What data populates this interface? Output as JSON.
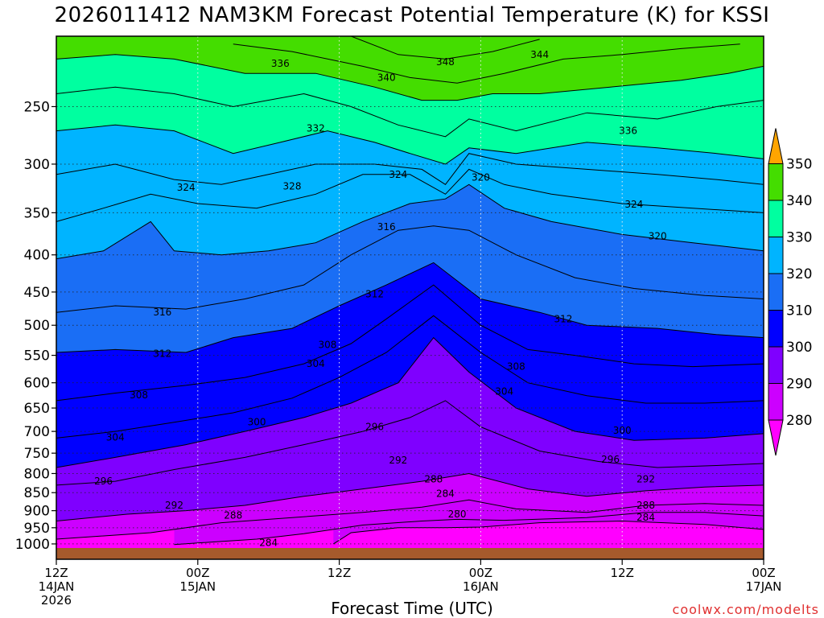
{
  "title": "2026011412 NAM3KM Forecast Potential Temperature (K) for KSSI",
  "xlabel": "Forecast Time (UTC)",
  "credit": "coolwx.com/modelts",
  "chart_data": {
    "type": "heatmap",
    "title": "2026011412 NAM3KM Forecast Potential Temperature (K) for KSSI",
    "xlabel": "Forecast Time (UTC)",
    "ylabel": "",
    "x_ticks": [
      {
        "hour": 0,
        "label": [
          "12Z",
          "14JAN",
          "2026"
        ]
      },
      {
        "hour": 12,
        "label": [
          "00Z",
          "15JAN"
        ]
      },
      {
        "hour": 24,
        "label": [
          "12Z"
        ]
      },
      {
        "hour": 36,
        "label": [
          "00Z",
          "16JAN"
        ]
      },
      {
        "hour": 48,
        "label": [
          "12Z"
        ]
      },
      {
        "hour": 60,
        "label": [
          "00Z",
          "17JAN"
        ]
      }
    ],
    "xlim": [
      0,
      60
    ],
    "y_ticks": [
      250,
      300,
      350,
      400,
      450,
      500,
      550,
      600,
      650,
      700,
      750,
      800,
      850,
      900,
      950,
      1000
    ],
    "ylim": [
      1013,
      200
    ],
    "y_scale": "log-pressure (hPa)",
    "colorbar": {
      "levels": [
        280,
        290,
        300,
        310,
        320,
        330,
        340,
        350
      ],
      "colors": [
        "#ff00ff",
        "#cc00ff",
        "#7f00ff",
        "#0000ff",
        "#1a6ef5",
        "#00b4ff",
        "#00ffa0",
        "#44dd00",
        "#ffff00",
        "#ffa500"
      ]
    },
    "contour_interval": 4,
    "isentropes": [
      {
        "value": 280,
        "points": [
          [
            23.5,
            1000
          ],
          [
            25,
            965
          ],
          [
            29,
            950
          ],
          [
            33,
            950
          ],
          [
            36,
            948
          ],
          [
            41,
            935
          ],
          [
            48,
            930
          ],
          [
            55,
            940
          ],
          [
            60,
            955
          ]
        ]
      },
      {
        "value": 284,
        "points": [
          [
            10,
            1002
          ],
          [
            17,
            985
          ],
          [
            21,
            968
          ],
          [
            26,
            942
          ],
          [
            31,
            930
          ],
          [
            34,
            925
          ],
          [
            38,
            928
          ],
          [
            45,
            920
          ],
          [
            50,
            905
          ],
          [
            55,
            905
          ],
          [
            60,
            915
          ]
        ]
      },
      {
        "value": 288,
        "points": [
          [
            0,
            985
          ],
          [
            8,
            965
          ],
          [
            14,
            935
          ],
          [
            20,
            920
          ],
          [
            26,
            905
          ],
          [
            31,
            890
          ],
          [
            35,
            870
          ],
          [
            39,
            895
          ],
          [
            45,
            905
          ],
          [
            50,
            885
          ],
          [
            55,
            880
          ],
          [
            60,
            885
          ]
        ]
      },
      {
        "value": 292,
        "points": [
          [
            0,
            930
          ],
          [
            6,
            910
          ],
          [
            11,
            900
          ],
          [
            16,
            885
          ],
          [
            21,
            860
          ],
          [
            26,
            840
          ],
          [
            31,
            820
          ],
          [
            35,
            800
          ],
          [
            40,
            840
          ],
          [
            45,
            860
          ],
          [
            50,
            845
          ],
          [
            55,
            835
          ],
          [
            60,
            830
          ]
        ]
      },
      {
        "value": 296,
        "points": [
          [
            0,
            830
          ],
          [
            5,
            820
          ],
          [
            10,
            790
          ],
          [
            16,
            760
          ],
          [
            21,
            730
          ],
          [
            26,
            700
          ],
          [
            30,
            670
          ],
          [
            33,
            635
          ],
          [
            36,
            690
          ],
          [
            41,
            745
          ],
          [
            46,
            770
          ],
          [
            51,
            785
          ],
          [
            56,
            780
          ],
          [
            60,
            775
          ]
        ]
      },
      {
        "value": 300,
        "points": [
          [
            0,
            785
          ],
          [
            5,
            760
          ],
          [
            11,
            730
          ],
          [
            16,
            700
          ],
          [
            21,
            670
          ],
          [
            25,
            640
          ],
          [
            29,
            600
          ],
          [
            32,
            520
          ],
          [
            35,
            580
          ],
          [
            39,
            650
          ],
          [
            44,
            700
          ],
          [
            49,
            720
          ],
          [
            55,
            715
          ],
          [
            60,
            705
          ]
        ]
      },
      {
        "value": 304,
        "points": [
          [
            0,
            715
          ],
          [
            5,
            700
          ],
          [
            10,
            680
          ],
          [
            15,
            660
          ],
          [
            20,
            630
          ],
          [
            24,
            590
          ],
          [
            28,
            545
          ],
          [
            32,
            485
          ],
          [
            36,
            545
          ],
          [
            40,
            600
          ],
          [
            45,
            625
          ],
          [
            50,
            640
          ],
          [
            55,
            640
          ],
          [
            60,
            635
          ]
        ]
      },
      {
        "value": 308,
        "points": [
          [
            0,
            635
          ],
          [
            5,
            620
          ],
          [
            11,
            605
          ],
          [
            16,
            590
          ],
          [
            21,
            565
          ],
          [
            25,
            530
          ],
          [
            28,
            490
          ],
          [
            32,
            440
          ],
          [
            36,
            500
          ],
          [
            40,
            540
          ],
          [
            44,
            550
          ],
          [
            49,
            565
          ],
          [
            54,
            570
          ],
          [
            60,
            565
          ]
        ]
      },
      {
        "value": 312,
        "points": [
          [
            0,
            545
          ],
          [
            5,
            540
          ],
          [
            11,
            545
          ],
          [
            15,
            520
          ],
          [
            20,
            505
          ],
          [
            24,
            470
          ],
          [
            28,
            440
          ],
          [
            32,
            410
          ],
          [
            36,
            460
          ],
          [
            41,
            480
          ],
          [
            45,
            500
          ],
          [
            51,
            505
          ],
          [
            56,
            515
          ],
          [
            60,
            520
          ]
        ]
      },
      {
        "value": 316,
        "points": [
          [
            0,
            480
          ],
          [
            5,
            470
          ],
          [
            11,
            475
          ],
          [
            16,
            460
          ],
          [
            21,
            440
          ],
          [
            25,
            400
          ],
          [
            29,
            370
          ],
          [
            32,
            365
          ],
          [
            35,
            370
          ],
          [
            39,
            400
          ],
          [
            44,
            430
          ],
          [
            49,
            445
          ],
          [
            55,
            455
          ],
          [
            60,
            460
          ]
        ]
      },
      {
        "value": 320,
        "points": [
          [
            0,
            405
          ],
          [
            4,
            395
          ],
          [
            8,
            360
          ],
          [
            10,
            395
          ],
          [
            14,
            400
          ],
          [
            18,
            395
          ],
          [
            22,
            385
          ],
          [
            26,
            360
          ],
          [
            30,
            340
          ],
          [
            33,
            335
          ],
          [
            35,
            320
          ],
          [
            38,
            345
          ],
          [
            42,
            360
          ],
          [
            48,
            375
          ],
          [
            54,
            385
          ],
          [
            60,
            395
          ]
        ]
      },
      {
        "value": 324,
        "points": [
          [
            0,
            360
          ],
          [
            4,
            345
          ],
          [
            8,
            330
          ],
          [
            12,
            340
          ],
          [
            17,
            345
          ],
          [
            22,
            330
          ],
          [
            26,
            310
          ],
          [
            30,
            310
          ],
          [
            33,
            330
          ],
          [
            35,
            305
          ],
          [
            38,
            320
          ],
          [
            42,
            330
          ],
          [
            48,
            340
          ],
          [
            54,
            345
          ],
          [
            60,
            350
          ]
        ]
      },
      {
        "value": 328,
        "points": [
          [
            0,
            310
          ],
          [
            5,
            300
          ],
          [
            10,
            315
          ],
          [
            14,
            320
          ],
          [
            18,
            310
          ],
          [
            22,
            300
          ],
          [
            27,
            300
          ],
          [
            31,
            305
          ],
          [
            33,
            320
          ],
          [
            35,
            290
          ],
          [
            39,
            300
          ],
          [
            45,
            305
          ],
          [
            51,
            310
          ],
          [
            56,
            315
          ],
          [
            60,
            320
          ]
        ]
      },
      {
        "value": 332,
        "points": [
          [
            0,
            270
          ],
          [
            5,
            265
          ],
          [
            10,
            270
          ],
          [
            15,
            290
          ],
          [
            19,
            280
          ],
          [
            23,
            270
          ],
          [
            27,
            280
          ],
          [
            30,
            290
          ],
          [
            33,
            300
          ],
          [
            35,
            285
          ],
          [
            39,
            290
          ],
          [
            45,
            280
          ],
          [
            51,
            285
          ],
          [
            56,
            290
          ],
          [
            60,
            295
          ]
        ]
      },
      {
        "value": 336,
        "points": [
          [
            0,
            240
          ],
          [
            5,
            235
          ],
          [
            10,
            240
          ],
          [
            15,
            250
          ],
          [
            21,
            240
          ],
          [
            25,
            250
          ],
          [
            29,
            265
          ],
          [
            33,
            275
          ],
          [
            35,
            260
          ],
          [
            39,
            270
          ],
          [
            45,
            255
          ],
          [
            51,
            260
          ],
          [
            56,
            250
          ],
          [
            60,
            245
          ]
        ]
      },
      {
        "value": 340,
        "points": [
          [
            0,
            215
          ],
          [
            5,
            212
          ],
          [
            10,
            215
          ],
          [
            16,
            225
          ],
          [
            22,
            225
          ],
          [
            27,
            235
          ],
          [
            31,
            245
          ],
          [
            34,
            245
          ],
          [
            37,
            240
          ],
          [
            41,
            240
          ],
          [
            47,
            235
          ],
          [
            53,
            230
          ],
          [
            57,
            225
          ],
          [
            60,
            220
          ]
        ]
      },
      {
        "value": 344,
        "points": [
          [
            15,
            205
          ],
          [
            20,
            210
          ],
          [
            26,
            220
          ],
          [
            30,
            228
          ],
          [
            34,
            232
          ],
          [
            38,
            225
          ],
          [
            43,
            215
          ],
          [
            48,
            212
          ],
          [
            53,
            208
          ],
          [
            58,
            205
          ]
        ]
      },
      {
        "value": 348,
        "points": [
          [
            25,
            200
          ],
          [
            29,
            212
          ],
          [
            33,
            215
          ],
          [
            37,
            210
          ],
          [
            41,
            202
          ]
        ]
      }
    ],
    "contour_labels": [
      {
        "text": "336",
        "hour": 19,
        "p": 218
      },
      {
        "text": "340",
        "hour": 28,
        "p": 228
      },
      {
        "text": "348",
        "hour": 33,
        "p": 217
      },
      {
        "text": "344",
        "hour": 41,
        "p": 212
      },
      {
        "text": "332",
        "hour": 22,
        "p": 268
      },
      {
        "text": "336",
        "hour": 48.5,
        "p": 270
      },
      {
        "text": "324",
        "hour": 11,
        "p": 323
      },
      {
        "text": "328",
        "hour": 20,
        "p": 322
      },
      {
        "text": "324",
        "hour": 29,
        "p": 310
      },
      {
        "text": "320",
        "hour": 36,
        "p": 313
      },
      {
        "text": "324",
        "hour": 49,
        "p": 341
      },
      {
        "text": "320",
        "hour": 51,
        "p": 377
      },
      {
        "text": "316",
        "hour": 28,
        "p": 366
      },
      {
        "text": "312",
        "hour": 27,
        "p": 453
      },
      {
        "text": "316",
        "hour": 9,
        "p": 480
      },
      {
        "text": "312",
        "hour": 43,
        "p": 490
      },
      {
        "text": "312",
        "hour": 9,
        "p": 547
      },
      {
        "text": "308",
        "hour": 23,
        "p": 532
      },
      {
        "text": "304",
        "hour": 22,
        "p": 565
      },
      {
        "text": "308",
        "hour": 39,
        "p": 570
      },
      {
        "text": "308",
        "hour": 7,
        "p": 624
      },
      {
        "text": "304",
        "hour": 38,
        "p": 617
      },
      {
        "text": "300",
        "hour": 17,
        "p": 680
      },
      {
        "text": "296",
        "hour": 27,
        "p": 690
      },
      {
        "text": "304",
        "hour": 5,
        "p": 713
      },
      {
        "text": "300",
        "hour": 48,
        "p": 698
      },
      {
        "text": "292",
        "hour": 29,
        "p": 767
      },
      {
        "text": "296",
        "hour": 47,
        "p": 765
      },
      {
        "text": "296",
        "hour": 4,
        "p": 820
      },
      {
        "text": "288",
        "hour": 32,
        "p": 815
      },
      {
        "text": "292",
        "hour": 50,
        "p": 815
      },
      {
        "text": "284",
        "hour": 33,
        "p": 853
      },
      {
        "text": "292",
        "hour": 10,
        "p": 885
      },
      {
        "text": "288",
        "hour": 50,
        "p": 885
      },
      {
        "text": "280",
        "hour": 34,
        "p": 910
      },
      {
        "text": "288",
        "hour": 15,
        "p": 913
      },
      {
        "text": "284",
        "hour": 50,
        "p": 920
      },
      {
        "text": "284",
        "hour": 18,
        "p": 996
      }
    ],
    "grid": true
  },
  "icons": {
    "ground_strip": "ground-strip",
    "colorbar_arrows": "triangle-arrows"
  }
}
